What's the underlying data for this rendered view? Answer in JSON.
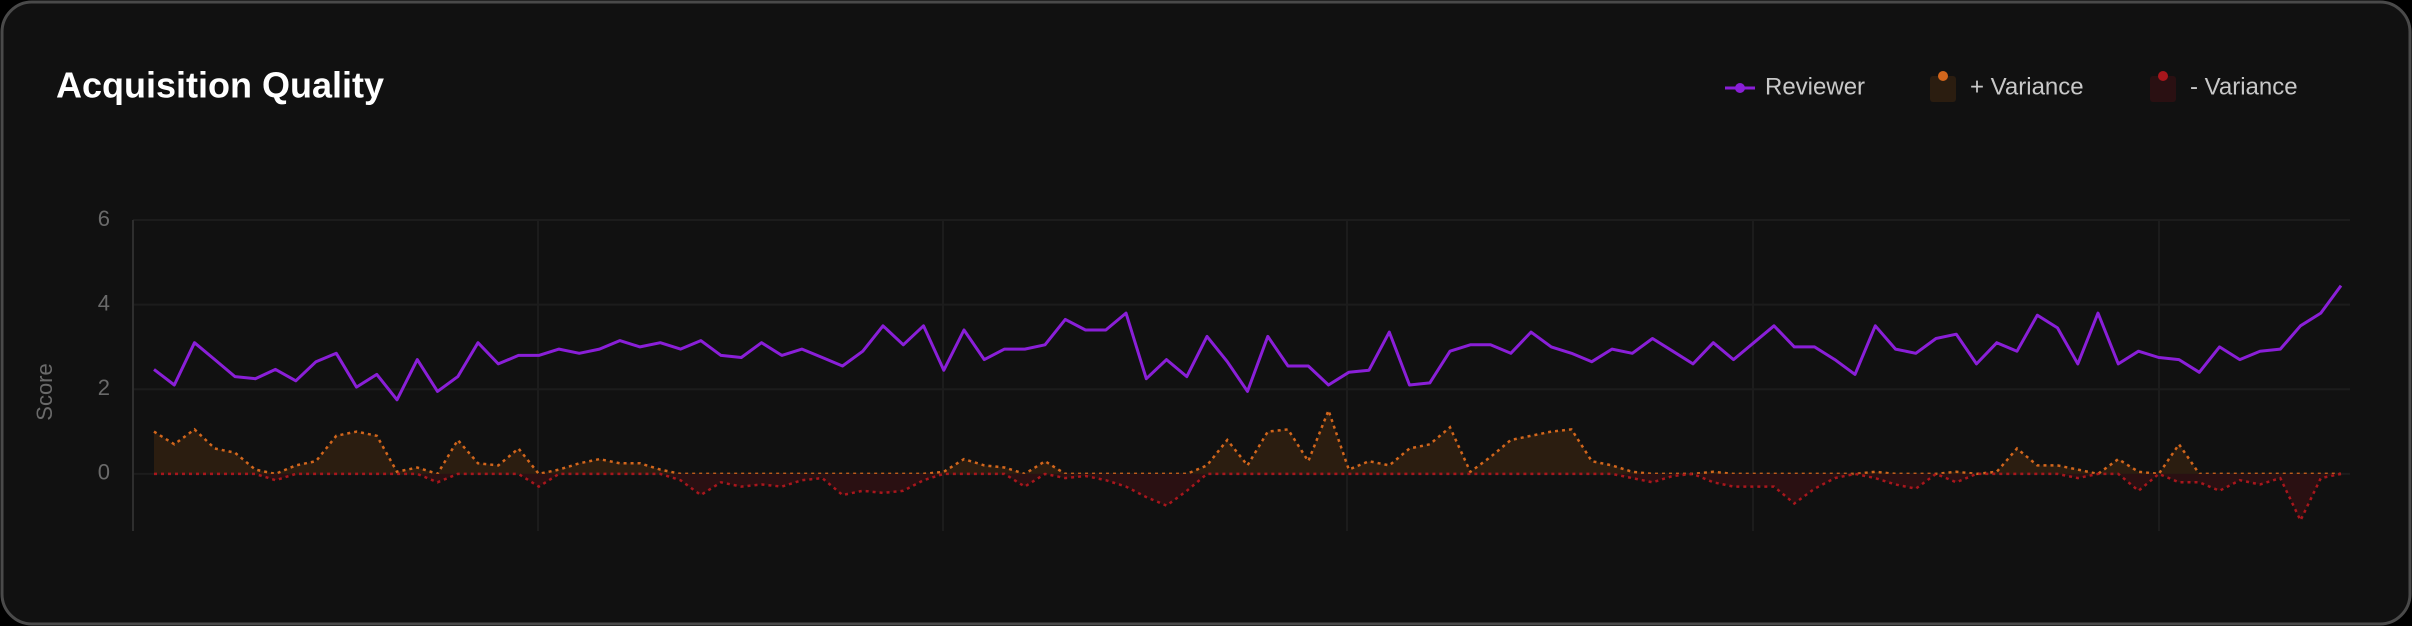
{
  "chart_data": {
    "type": "line",
    "title": "Acquisition Quality",
    "y_label": "Score",
    "ylim": [
      -1.35,
      6
    ],
    "yticks": [
      0,
      2,
      4,
      6
    ],
    "grid": true,
    "legend": "top-right",
    "series": [
      {
        "name": "Reviewer",
        "color": "#8a1fd8",
        "values": [
          2.47,
          2.1,
          3.1,
          2.7,
          2.3,
          2.25,
          2.47,
          2.2,
          2.65,
          2.85,
          2.05,
          2.35,
          1.75,
          2.7,
          1.95,
          2.3,
          3.1,
          2.6,
          2.8,
          2.8,
          2.95,
          2.85,
          2.95,
          3.15,
          3.0,
          3.1,
          2.95,
          3.15,
          2.8,
          2.75,
          3.1,
          2.8,
          2.95,
          2.75,
          2.55,
          2.9,
          3.5,
          3.05,
          3.5,
          2.45,
          3.4,
          2.7,
          2.95,
          2.95,
          3.05,
          3.65,
          3.4,
          3.4,
          3.8,
          2.25,
          2.7,
          2.3,
          3.25,
          2.65,
          1.95,
          3.25,
          2.55,
          2.55,
          2.1,
          2.4,
          2.45,
          3.35,
          2.1,
          2.15,
          2.9,
          3.05,
          3.05,
          2.85,
          3.35,
          3.0,
          2.85,
          2.65,
          2.95,
          2.85,
          3.2,
          2.9,
          2.6,
          3.1,
          2.7,
          3.1,
          3.5,
          3.0,
          3.0,
          2.7,
          2.35,
          3.5,
          2.95,
          2.85,
          3.2,
          3.3,
          2.6,
          3.1,
          2.9,
          3.75,
          3.45,
          2.6,
          3.8,
          2.6,
          2.9,
          2.75,
          2.7,
          2.4,
          3.0,
          2.7,
          2.9,
          2.95,
          3.5,
          3.8,
          4.45
        ]
      },
      {
        "name": "+ Variance",
        "color": "#d2661c",
        "fill": "#2b1d10",
        "values": [
          1.0,
          0.7,
          1.05,
          0.6,
          0.5,
          0.1,
          0,
          0.2,
          0.3,
          0.9,
          1.0,
          0.9,
          0.05,
          0.15,
          0,
          0.8,
          0.25,
          0.2,
          0.6,
          0,
          0.1,
          0.25,
          0.35,
          0.25,
          0.25,
          0.1,
          0,
          0,
          0,
          0,
          0,
          0,
          0,
          0,
          0,
          0,
          0,
          0,
          0,
          0.05,
          0.35,
          0.2,
          0.15,
          0,
          0.3,
          0,
          0,
          0,
          0,
          0,
          0,
          0,
          0.2,
          0.8,
          0.2,
          1.0,
          1.05,
          0.3,
          1.5,
          0.1,
          0.3,
          0.2,
          0.6,
          0.7,
          1.1,
          0.05,
          0.4,
          0.8,
          0.9,
          1.0,
          1.05,
          0.3,
          0.2,
          0.05,
          0,
          0,
          0,
          0.05,
          0,
          0,
          0,
          0,
          0,
          0,
          0,
          0.05,
          0,
          0,
          0,
          0.05,
          0,
          0.05,
          0.6,
          0.2,
          0.2,
          0.1,
          0,
          0.35,
          0.05,
          0,
          0.7,
          0,
          0,
          0,
          0,
          0,
          0,
          0,
          0
        ]
      },
      {
        "name": "- Variance",
        "color": "#a8161c",
        "fill": "#2a1012",
        "values": [
          0,
          0,
          0,
          0,
          0,
          0,
          -0.15,
          0,
          0,
          0,
          0,
          0,
          0,
          0,
          -0.2,
          0,
          0,
          0,
          0,
          -0.3,
          0,
          0,
          0,
          0,
          0,
          0,
          -0.15,
          -0.5,
          -0.2,
          -0.3,
          -0.25,
          -0.3,
          -0.15,
          -0.1,
          -0.5,
          -0.4,
          -0.45,
          -0.4,
          -0.15,
          0,
          0,
          0,
          0,
          -0.3,
          0,
          -0.1,
          -0.05,
          -0.15,
          -0.3,
          -0.55,
          -0.75,
          -0.4,
          0,
          0,
          0,
          0,
          0,
          0,
          0,
          0,
          0,
          0,
          0,
          0,
          0,
          0,
          0,
          0,
          0,
          0,
          0,
          0,
          0,
          -0.1,
          -0.2,
          -0.05,
          0,
          -0.2,
          -0.3,
          -0.3,
          -0.3,
          -0.7,
          -0.35,
          -0.1,
          0,
          -0.1,
          -0.25,
          -0.35,
          0,
          -0.2,
          0,
          0,
          0,
          0,
          0,
          -0.1,
          0,
          0,
          -0.4,
          0,
          -0.2,
          -0.2,
          -0.4,
          -0.15,
          -0.25,
          -0.1,
          -1.1,
          -0.1,
          0
        ]
      }
    ]
  }
}
